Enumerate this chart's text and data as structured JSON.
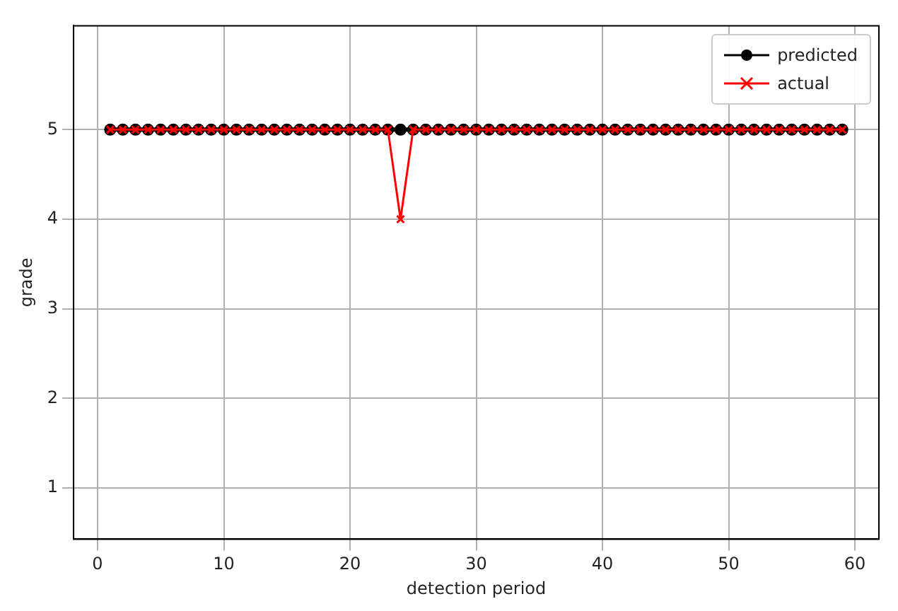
{
  "chart_data": {
    "type": "line",
    "xlabel": "detection period",
    "ylabel": "grade",
    "x": [
      1,
      2,
      3,
      4,
      5,
      6,
      7,
      8,
      9,
      10,
      11,
      12,
      13,
      14,
      15,
      16,
      17,
      18,
      19,
      20,
      21,
      22,
      23,
      24,
      25,
      26,
      27,
      28,
      29,
      30,
      31,
      32,
      33,
      34,
      35,
      36,
      37,
      38,
      39,
      40,
      41,
      42,
      43,
      44,
      45,
      46,
      47,
      48,
      49,
      50,
      51,
      52,
      53,
      54,
      55,
      56,
      57,
      58,
      59
    ],
    "series": [
      {
        "name": "predicted",
        "color": "#000000",
        "marker": "circle",
        "values": [
          5,
          5,
          5,
          5,
          5,
          5,
          5,
          5,
          5,
          5,
          5,
          5,
          5,
          5,
          5,
          5,
          5,
          5,
          5,
          5,
          5,
          5,
          5,
          5,
          5,
          5,
          5,
          5,
          5,
          5,
          5,
          5,
          5,
          5,
          5,
          5,
          5,
          5,
          5,
          5,
          5,
          5,
          5,
          5,
          5,
          5,
          5,
          5,
          5,
          5,
          5,
          5,
          5,
          5,
          5,
          5,
          5,
          5,
          5
        ]
      },
      {
        "name": "actual",
        "color": "#ff0000",
        "marker": "cross",
        "values": [
          5,
          5,
          5,
          5,
          5,
          5,
          5,
          5,
          5,
          5,
          5,
          5,
          5,
          5,
          5,
          5,
          5,
          5,
          5,
          5,
          5,
          5,
          5,
          4,
          5,
          5,
          5,
          5,
          5,
          5,
          5,
          5,
          5,
          5,
          5,
          5,
          5,
          5,
          5,
          5,
          5,
          5,
          5,
          5,
          5,
          5,
          5,
          5,
          5,
          5,
          5,
          5,
          5,
          5,
          5,
          5,
          5,
          5,
          5
        ]
      }
    ],
    "xlim": [
      -1.9,
      61.9
    ],
    "xticks": [
      0,
      10,
      20,
      30,
      40,
      50,
      60
    ],
    "ylim": [
      0.43,
      6.16
    ],
    "yticks": [
      1,
      2,
      3,
      4,
      5
    ],
    "grid": true,
    "legend": "top right"
  }
}
